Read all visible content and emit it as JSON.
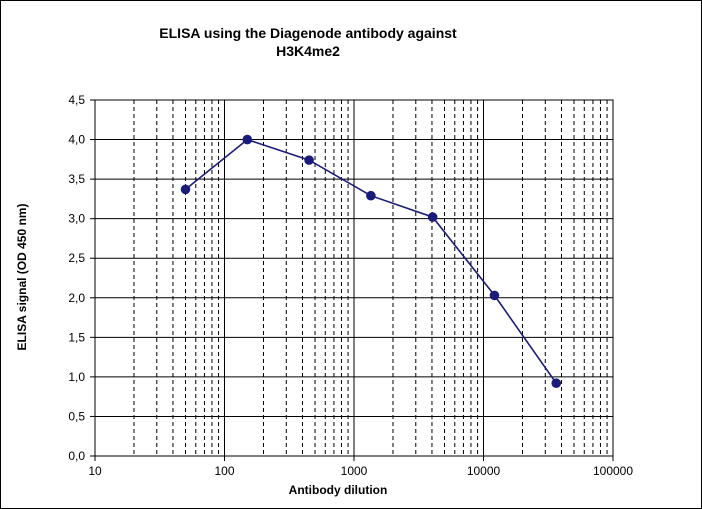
{
  "chart_data": {
    "type": "line",
    "title_line1": "ELISA using the Diagenode antibody against",
    "title_line2": "H3K4me2",
    "xlabel": "Antibody dilution",
    "ylabel": "ELISA signal (OD 450 nm)",
    "x_scale": "log",
    "xlim": [
      10,
      100000
    ],
    "ylim": [
      0,
      4.5
    ],
    "x_ticks": [
      10,
      100,
      1000,
      10000,
      100000
    ],
    "x_tick_labels": [
      "10",
      "100",
      "1000",
      "10000",
      "100000"
    ],
    "y_ticks": [
      0,
      0.5,
      1,
      1.5,
      2,
      2.5,
      3,
      3.5,
      4,
      4.5
    ],
    "y_tick_labels": [
      "0,0",
      "0,5",
      "1,0",
      "1,5",
      "2,0",
      "2,5",
      "3,0",
      "3,5",
      "4,0",
      "4,5"
    ],
    "grid": true,
    "legend": "none",
    "series": [
      {
        "x": [
          50,
          150,
          450,
          1350,
          4050,
          12150,
          36450
        ],
        "values": [
          3.37,
          4.0,
          3.74,
          3.29,
          3.02,
          2.03,
          0.92
        ],
        "color": "#1b1b7a"
      }
    ]
  }
}
